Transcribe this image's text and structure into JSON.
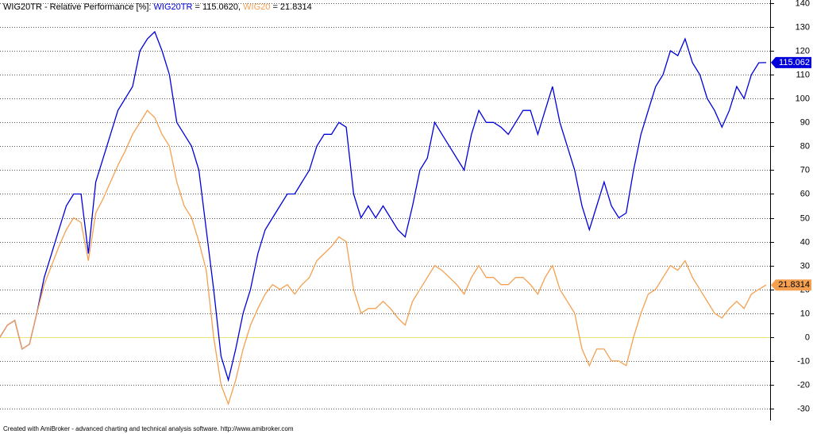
{
  "chart_data": {
    "type": "line",
    "title": "WIG20TR - Relative Performance [%]:",
    "footer": "Created with AmiBroker - advanced charting and technical analysis software. http://www.amibroker.com",
    "categories": [
      null,
      null,
      null,
      null,
      null,
      null,
      null,
      null,
      null,
      null,
      null,
      null,
      null,
      null,
      null,
      null,
      null,
      null,
      null,
      null,
      null,
      null,
      null,
      null,
      null,
      null,
      null,
      null,
      null,
      null,
      null,
      null,
      null,
      null,
      null,
      null,
      null,
      null,
      null,
      null,
      null,
      null,
      null,
      null,
      null,
      null,
      null,
      null,
      null,
      null,
      null,
      null,
      null,
      null,
      null,
      null,
      null,
      null,
      null,
      null,
      null,
      null,
      null,
      null,
      null,
      null,
      null,
      null,
      null,
      null,
      null,
      null,
      null,
      null,
      null,
      null,
      null,
      null,
      null,
      null,
      null,
      null,
      null,
      null,
      null,
      null,
      null,
      null,
      null,
      null,
      null,
      null,
      null,
      null,
      null,
      null,
      null,
      null,
      null,
      null,
      null,
      null,
      null,
      null,
      null
    ],
    "series": [
      {
        "name": "WIG20TR",
        "color": "#0000dd",
        "legend_label": "= 115.0620,",
        "last_label": "115.062",
        "values": [
          0,
          5,
          7,
          -5,
          -3,
          10,
          25,
          35,
          45,
          55,
          60,
          60,
          35,
          65,
          75,
          85,
          95,
          100,
          105,
          120,
          125,
          128,
          120,
          110,
          90,
          85,
          80,
          70,
          45,
          20,
          -8,
          -18,
          -5,
          10,
          20,
          35,
          45,
          50,
          55,
          60,
          60,
          65,
          70,
          80,
          85,
          85,
          90,
          88,
          60,
          50,
          55,
          50,
          55,
          50,
          45,
          42,
          55,
          70,
          75,
          90,
          85,
          80,
          75,
          70,
          85,
          95,
          90,
          90,
          88,
          85,
          90,
          95,
          95,
          85,
          95,
          105,
          90,
          80,
          70,
          55,
          45,
          55,
          65,
          55,
          50,
          52,
          70,
          85,
          95,
          105,
          110,
          120,
          118,
          125,
          115,
          110,
          100,
          95,
          88,
          95,
          105,
          100,
          110,
          115,
          115.062
        ]
      },
      {
        "name": "WIG20",
        "color": "#f4a050",
        "legend_label": "= 21.8314",
        "last_label": "21.8314",
        "values": [
          0,
          5,
          7,
          -5,
          -3,
          10,
          22,
          30,
          38,
          45,
          50,
          48,
          32,
          52,
          58,
          65,
          72,
          78,
          85,
          90,
          95,
          92,
          85,
          80,
          65,
          55,
          50,
          40,
          28,
          0,
          -20,
          -28,
          -18,
          -5,
          5,
          12,
          18,
          22,
          20,
          22,
          18,
          22,
          25,
          32,
          35,
          38,
          42,
          40,
          20,
          10,
          12,
          12,
          15,
          12,
          8,
          5,
          15,
          20,
          25,
          30,
          28,
          25,
          22,
          18,
          25,
          30,
          25,
          25,
          22,
          22,
          25,
          25,
          22,
          18,
          25,
          30,
          20,
          15,
          10,
          -5,
          -12,
          -5,
          -5,
          -10,
          -10,
          -12,
          0,
          10,
          18,
          20,
          25,
          30,
          28,
          32,
          25,
          20,
          15,
          10,
          8,
          12,
          15,
          12,
          18,
          20,
          21.8314
        ]
      }
    ],
    "ylim": [
      -34.3,
      141.3
    ],
    "yticks": [
      -30,
      -20,
      -10,
      0,
      10,
      20,
      30,
      40,
      50,
      60,
      70,
      80,
      90,
      100,
      110,
      120,
      130,
      140
    ],
    "grid": true
  }
}
